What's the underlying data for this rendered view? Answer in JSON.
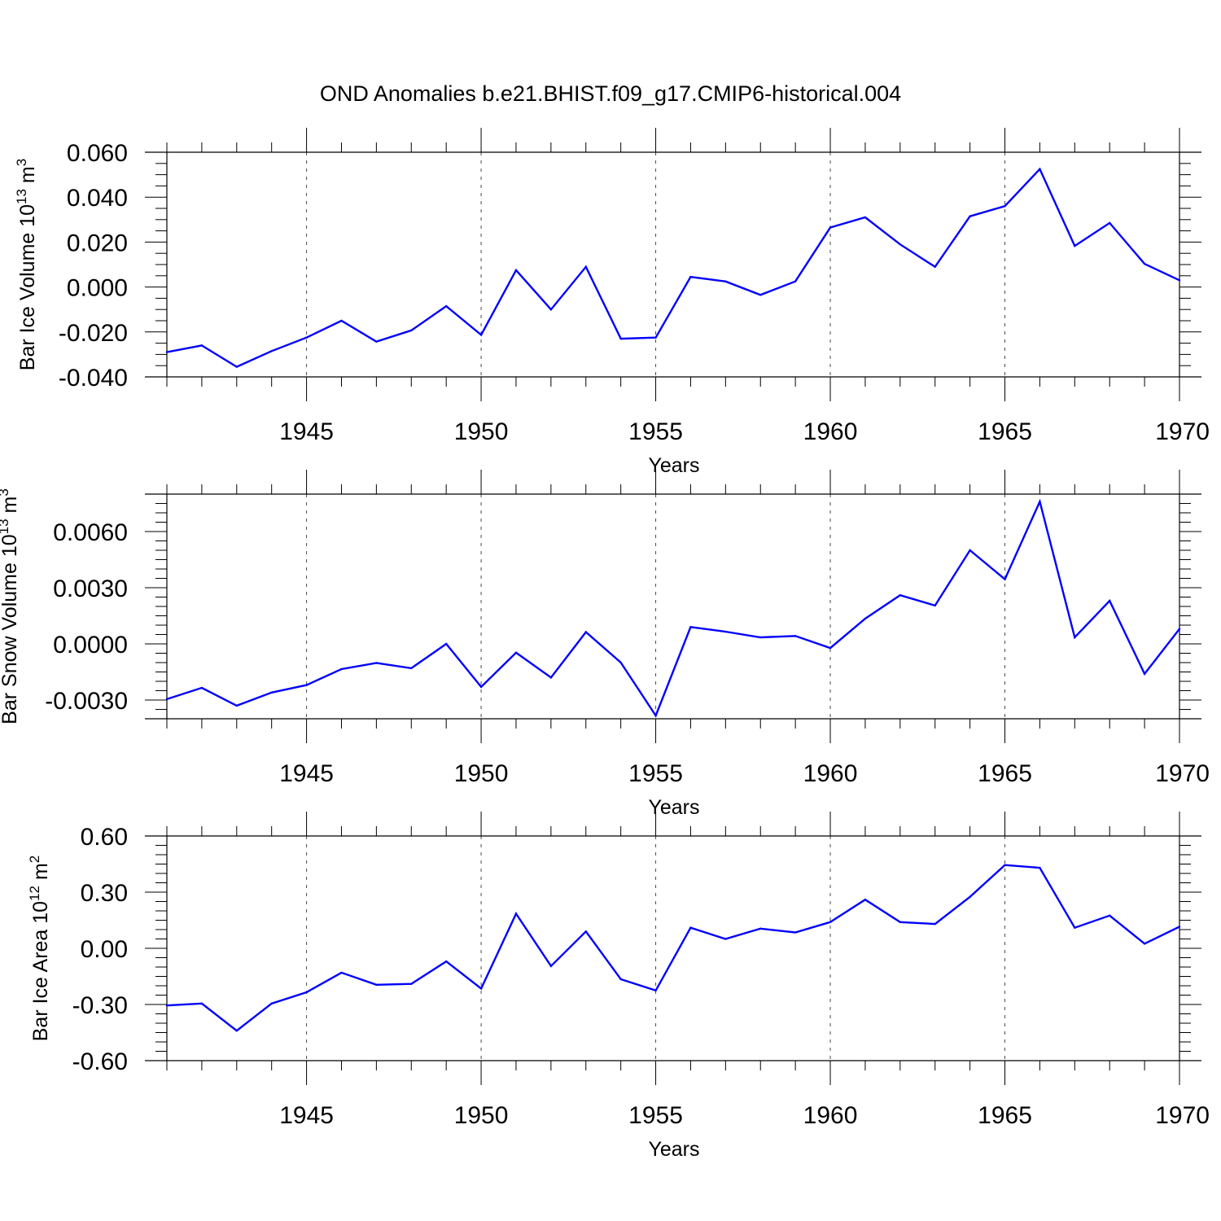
{
  "title": "OND Anomalies b.e21.BHIST.f09_g17.CMIP6-historical.004",
  "colors": {
    "line": "#0000ff",
    "axis": "#000000",
    "grid": "#000000"
  },
  "chart_data": [
    {
      "type": "line",
      "title": "OND Anomalies b.e21.BHIST.f09_g17.CMIP6-historical.004",
      "xlabel": "Years",
      "ylabel": {
        "prefix": "Bar Ice Volume 10",
        "exp": "13",
        "unit": " m",
        "unit_exp": "3"
      },
      "xlim": [
        1941,
        1970
      ],
      "ylim": [
        -0.04,
        0.06
      ],
      "xticks": [
        1945,
        1950,
        1955,
        1960,
        1965,
        1970
      ],
      "yticks": [
        -0.04,
        -0.02,
        0.0,
        0.02,
        0.04,
        0.06
      ],
      "ytick_labels": [
        "-0.040",
        "-0.020",
        "0.000",
        "0.020",
        "0.040",
        "0.060"
      ],
      "yminor_step": 0.005,
      "grid": "vertical dashed at major x ticks",
      "series": [
        {
          "name": "Bar Ice Volume",
          "x": [
            1941,
            1942,
            1943,
            1944,
            1945,
            1946,
            1947,
            1948,
            1949,
            1950,
            1951,
            1952,
            1953,
            1954,
            1955,
            1956,
            1957,
            1958,
            1959,
            1960,
            1961,
            1962,
            1963,
            1964,
            1965,
            1966,
            1967,
            1968,
            1969,
            1970
          ],
          "values": [
            -0.029,
            -0.026,
            -0.0355,
            -0.0285,
            -0.0225,
            -0.015,
            -0.0243,
            -0.0193,
            -0.0085,
            -0.0213,
            0.0075,
            -0.01,
            0.009,
            -0.023,
            -0.0225,
            0.0045,
            0.0025,
            -0.0035,
            0.0025,
            0.0265,
            0.031,
            0.019,
            0.009,
            0.0315,
            0.036,
            0.0525,
            0.0183,
            0.0285,
            0.0103,
            0.003
          ]
        }
      ]
    },
    {
      "type": "line",
      "xlabel": "Years",
      "ylabel": {
        "prefix": "Bar Snow Volume 10",
        "exp": "13",
        "unit": " m",
        "unit_exp": "3"
      },
      "xlim": [
        1941,
        1970
      ],
      "ylim": [
        -0.004,
        0.008
      ],
      "xticks": [
        1945,
        1950,
        1955,
        1960,
        1965,
        1970
      ],
      "yticks": [
        -0.003,
        0.0,
        0.003,
        0.006
      ],
      "ytick_labels": [
        "-0.0030",
        "0.0000",
        "0.0030",
        "0.0060"
      ],
      "yminor_step": 0.0005,
      "grid": "vertical dashed at major x ticks",
      "series": [
        {
          "name": "Bar Snow Volume",
          "x": [
            1941,
            1942,
            1943,
            1944,
            1945,
            1946,
            1947,
            1948,
            1949,
            1950,
            1951,
            1952,
            1953,
            1954,
            1955,
            1956,
            1957,
            1958,
            1959,
            1960,
            1961,
            1962,
            1963,
            1964,
            1965,
            1966,
            1967,
            1968,
            1969,
            1970
          ],
          "values": [
            -0.00295,
            -0.00235,
            -0.0033,
            -0.0026,
            -0.0022,
            -0.00135,
            -0.00102,
            -0.0013,
            0.0,
            -0.0023,
            -0.00047,
            -0.0018,
            0.00063,
            -0.001,
            -0.00383,
            0.0009,
            0.00065,
            0.00035,
            0.00042,
            -0.00022,
            0.00135,
            0.0026,
            0.00205,
            0.005,
            0.00345,
            0.0076,
            0.00035,
            0.0023,
            -0.0016,
            0.0008
          ]
        }
      ]
    },
    {
      "type": "line",
      "xlabel": "Years",
      "ylabel": {
        "prefix": "Bar Ice Area 10",
        "exp": "12",
        "unit": " m",
        "unit_exp": "2"
      },
      "xlim": [
        1941,
        1970
      ],
      "ylim": [
        -0.6,
        0.6
      ],
      "xticks": [
        1945,
        1950,
        1955,
        1960,
        1965,
        1970
      ],
      "yticks": [
        -0.6,
        -0.3,
        0.0,
        0.3,
        0.6
      ],
      "ytick_labels": [
        "-0.60",
        "-0.30",
        "0.00",
        "0.30",
        "0.60"
      ],
      "yminor_step": 0.05,
      "grid": "vertical dashed at major x ticks",
      "series": [
        {
          "name": "Bar Ice Area",
          "x": [
            1941,
            1942,
            1943,
            1944,
            1945,
            1946,
            1947,
            1948,
            1949,
            1950,
            1951,
            1952,
            1953,
            1954,
            1955,
            1956,
            1957,
            1958,
            1959,
            1960,
            1961,
            1962,
            1963,
            1964,
            1965,
            1966,
            1967,
            1968,
            1969,
            1970
          ],
          "values": [
            -0.305,
            -0.295,
            -0.44,
            -0.295,
            -0.235,
            -0.13,
            -0.195,
            -0.19,
            -0.07,
            -0.215,
            0.185,
            -0.095,
            0.09,
            -0.165,
            -0.225,
            0.11,
            0.05,
            0.105,
            0.085,
            0.14,
            0.26,
            0.14,
            0.13,
            0.275,
            0.445,
            0.43,
            0.11,
            0.175,
            0.025,
            0.115
          ]
        }
      ]
    }
  ]
}
